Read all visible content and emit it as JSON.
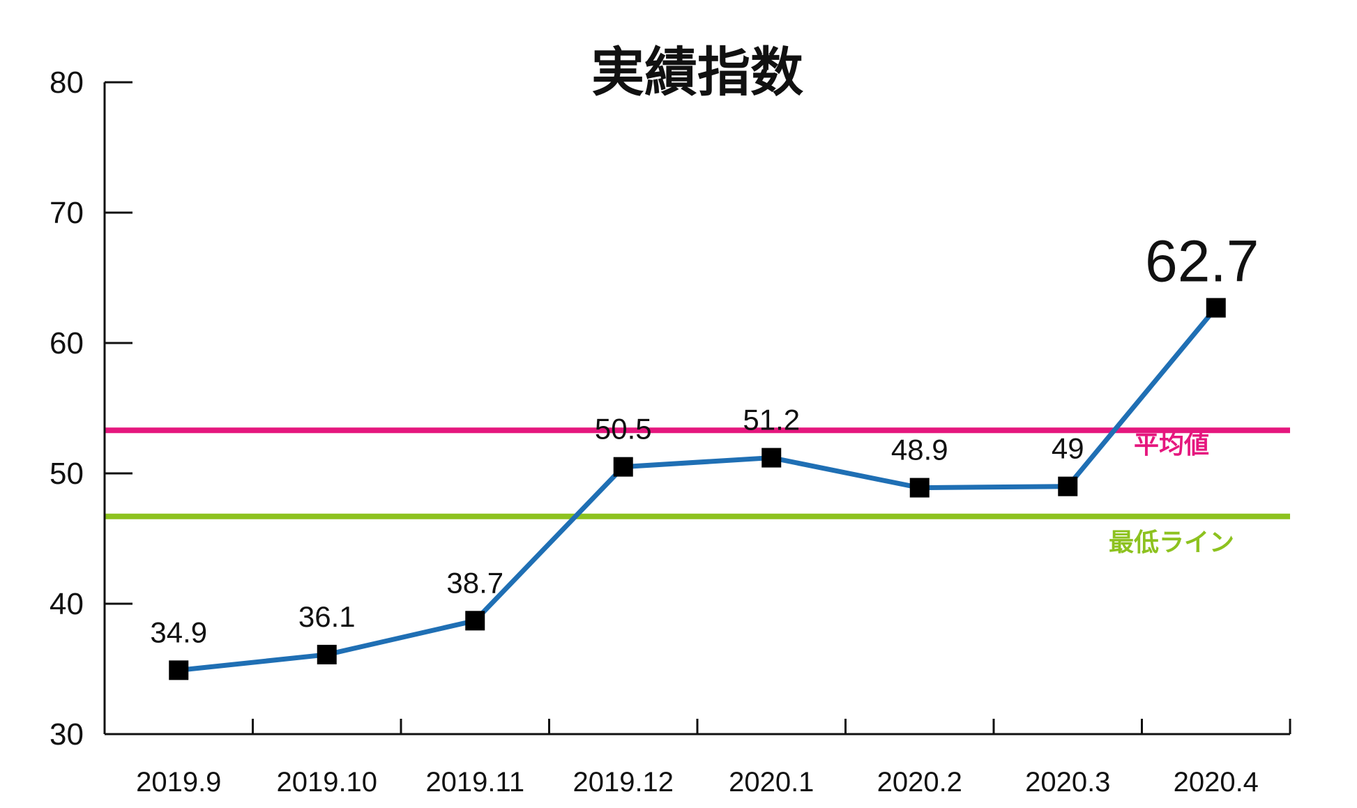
{
  "chart_data": {
    "type": "line",
    "title": "実績指数",
    "categories": [
      "2019.9",
      "2019.10",
      "2019.11",
      "2019.12",
      "2020.1",
      "2020.2",
      "2020.3",
      "2020.4"
    ],
    "values": [
      34.9,
      36.1,
      38.7,
      50.5,
      51.2,
      48.9,
      49.0,
      62.7
    ],
    "data_labels": [
      "34.9",
      "36.1",
      "38.7",
      "50.5",
      "51.2",
      "48.9",
      "49",
      "62.7"
    ],
    "ylim": [
      30,
      80
    ],
    "yticks": [
      "30",
      "40",
      "50",
      "60",
      "70",
      "80"
    ],
    "reference_lines": [
      {
        "label": "平均値",
        "value": 53.3,
        "color": "#e5177e"
      },
      {
        "label": "最低ライン",
        "value": 46.7,
        "color": "#8dc21f"
      }
    ],
    "series_color": "#1f6fb4",
    "marker_color": "#000000",
    "label_color": "#37a935",
    "grid": false
  }
}
